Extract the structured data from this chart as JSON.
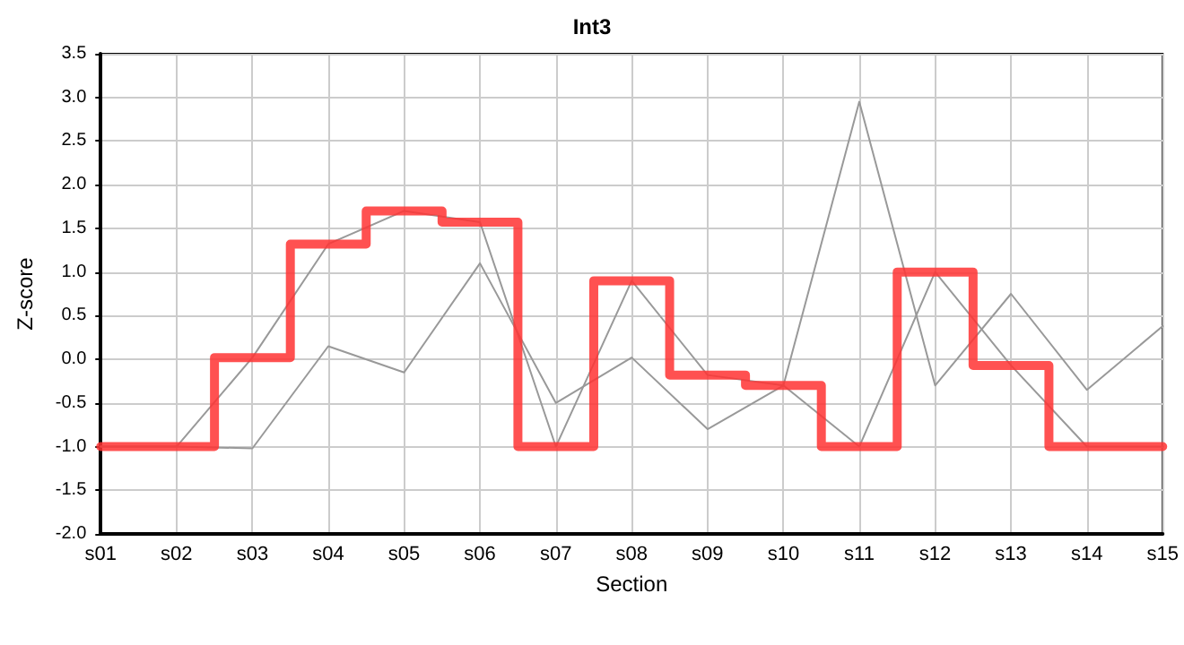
{
  "chart_data": {
    "type": "line",
    "title": "Int3",
    "xlabel": "Section",
    "ylabel": "Z-score",
    "categories": [
      "s01",
      "s02",
      "s03",
      "s04",
      "s05",
      "s06",
      "s07",
      "s08",
      "s09",
      "s10",
      "s11",
      "s12",
      "s13",
      "s14",
      "s15"
    ],
    "series": [
      {
        "color": "#999999",
        "values": [
          -1,
          -1,
          -1.02,
          0.15,
          -0.15,
          1.1,
          -0.5,
          0.02,
          -0.8,
          -0.3,
          2.95,
          -0.3,
          0.75,
          -0.35,
          0.38
        ]
      },
      {
        "color": "#999999",
        "values": [
          -1,
          -1,
          0.02,
          1.32,
          1.7,
          1.57,
          -1,
          0.9,
          -0.18,
          -0.3,
          -1,
          1.0,
          -0.07,
          -1,
          -1
        ]
      },
      {
        "type": "step",
        "color": "#ff3333",
        "values": [
          -1,
          -1,
          0.02,
          1.32,
          1.7,
          1.57,
          -1,
          0.9,
          -0.18,
          -0.3,
          -1,
          1.0,
          -0.07,
          -1,
          -1
        ]
      }
    ],
    "ylim": [
      -2,
      3.5
    ],
    "yticks": [
      {
        "value": -2,
        "label": "-2.0"
      },
      {
        "value": -1.5,
        "label": "-1.5"
      },
      {
        "value": -1,
        "label": "-1.0"
      },
      {
        "value": -0.5,
        "label": "-0.5"
      },
      {
        "value": 0,
        "label": "0.0"
      },
      {
        "value": 0.5,
        "label": "0.5"
      },
      {
        "value": 1,
        "label": "1.0"
      },
      {
        "value": 1.5,
        "label": "1.5"
      },
      {
        "value": 2,
        "label": "2.0"
      },
      {
        "value": 2.5,
        "label": "2.5"
      },
      {
        "value": 3,
        "label": "3.0"
      },
      {
        "value": 3.5,
        "label": "3.5"
      }
    ],
    "grid": true,
    "marker": "none",
    "line_style": "solid"
  }
}
